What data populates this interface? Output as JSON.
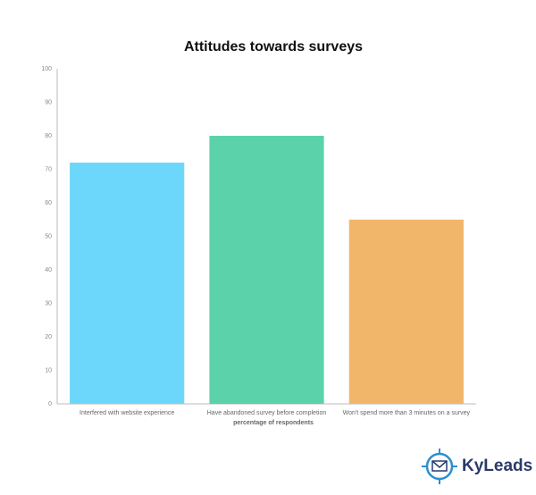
{
  "chart_data": {
    "type": "bar",
    "title": "Attitudes towards surveys",
    "categories": [
      "Interfered with website experience",
      "Have abandoned survey before completion",
      "Won't spend more than 3 minutes on a survey"
    ],
    "values": [
      72,
      80,
      55
    ],
    "colors": [
      "#6dd7fb",
      "#5bd2aa",
      "#f2b66b"
    ],
    "x_label": "percentage of respondents",
    "ylim": [
      0,
      100
    ],
    "yticks": [
      0,
      10,
      20,
      30,
      40,
      50,
      60,
      70,
      80,
      90,
      100
    ],
    "grid": false
  },
  "brand": "KyLeads"
}
